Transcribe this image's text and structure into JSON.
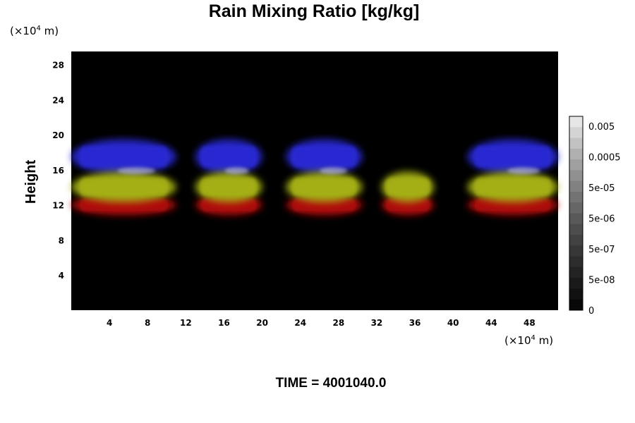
{
  "chart_data": {
    "type": "heatmap",
    "title": "Rain Mixing Ratio [kg/kg]",
    "ylabel": "Height",
    "unit_prefix": "(×10",
    "unit_exponent": "4",
    "unit_suffix": " m)",
    "xlim": [
      0,
      51
    ],
    "ylim": [
      0,
      29.5
    ],
    "x_ticks": [
      4,
      8,
      12,
      16,
      20,
      24,
      28,
      32,
      36,
      40,
      44,
      48
    ],
    "y_ticks": [
      4,
      8,
      12,
      16,
      20,
      24,
      28
    ],
    "background_color": "#000000",
    "layers": [
      {
        "name": "blue",
        "color": "#2a2ad8",
        "y_range": [
          15.5,
          19.5
        ]
      },
      {
        "name": "yellow",
        "color": "#a8b418",
        "y_range": [
          12.3,
          15.8
        ]
      },
      {
        "name": "red",
        "color": "#b41010",
        "y_range": [
          10.8,
          13.2
        ]
      }
    ],
    "cloud_cells": [
      {
        "x_range": [
          0,
          11
        ],
        "layers": [
          "blue",
          "yellow",
          "red"
        ]
      },
      {
        "x_range": [
          13,
          20
        ],
        "layers": [
          "blue",
          "yellow",
          "red"
        ]
      },
      {
        "x_range": [
          22.5,
          30.5
        ],
        "layers": [
          "blue",
          "yellow",
          "red"
        ]
      },
      {
        "x_range": [
          32.5,
          38
        ],
        "layers": [
          "yellow",
          "red"
        ]
      },
      {
        "x_range": [
          41.5,
          51
        ],
        "layers": [
          "blue",
          "yellow",
          "red"
        ]
      }
    ],
    "colorbar": {
      "tick_labels": [
        "0.005",
        "0.0005",
        "5e-05",
        "5e-06",
        "5e-07",
        "5e-08",
        "0"
      ],
      "colors": [
        "#e6e6e6",
        "#d4d4d4",
        "#c2c2c2",
        "#b0b0b0",
        "#a0a0a0",
        "#909090",
        "#818181",
        "#737373",
        "#666666",
        "#595959",
        "#4d4d4d",
        "#424242",
        "#373737",
        "#2d2d2d",
        "#232323",
        "#1a1a1a",
        "#111111",
        "#080808"
      ]
    },
    "time_label": "TIME = 4001040.0"
  }
}
